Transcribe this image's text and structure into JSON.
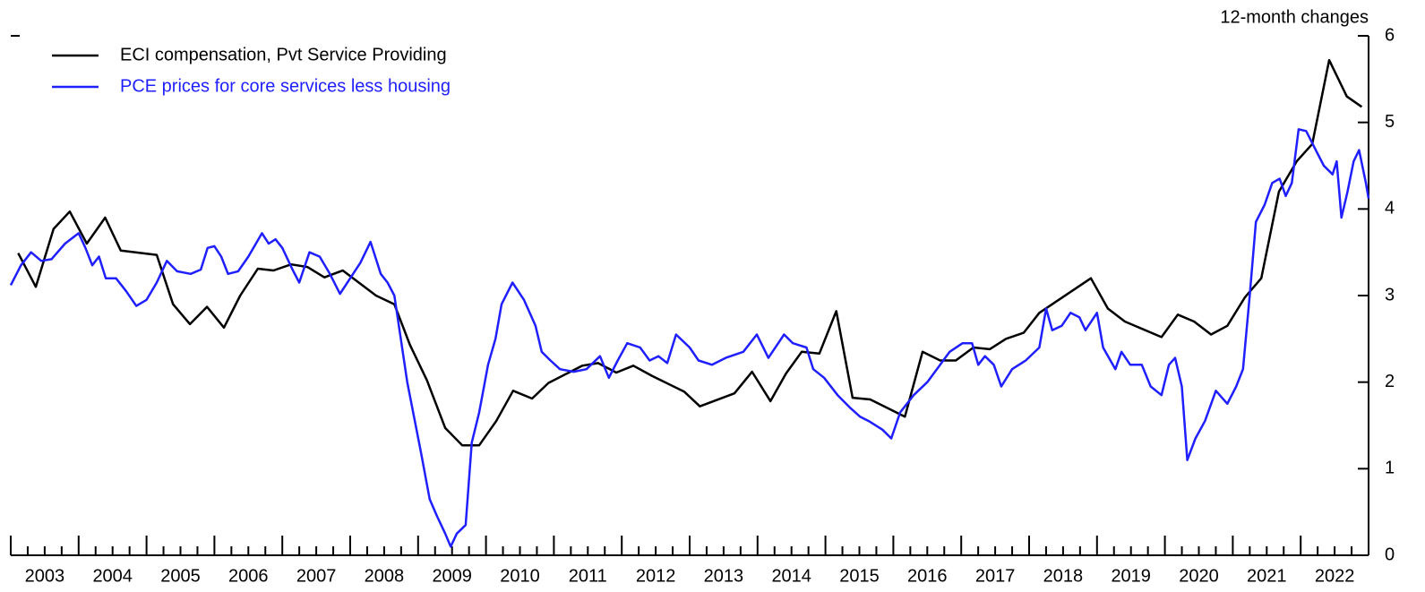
{
  "chart_data": {
    "type": "line",
    "annotation": "12-month changes",
    "legend": "upper left",
    "xlim": [
      2003,
      2023
    ],
    "xticks": [
      {
        "value": 2003.5,
        "label": "2003"
      },
      {
        "value": 2004.5,
        "label": "2004"
      },
      {
        "value": 2005.5,
        "label": "2005"
      },
      {
        "value": 2006.5,
        "label": "2006"
      },
      {
        "value": 2007.5,
        "label": "2007"
      },
      {
        "value": 2008.5,
        "label": "2008"
      },
      {
        "value": 2009.5,
        "label": "2009"
      },
      {
        "value": 2010.5,
        "label": "2010"
      },
      {
        "value": 2011.5,
        "label": "2011"
      },
      {
        "value": 2012.5,
        "label": "2012"
      },
      {
        "value": 2013.5,
        "label": "2013"
      },
      {
        "value": 2014.5,
        "label": "2014"
      },
      {
        "value": 2015.5,
        "label": "2015"
      },
      {
        "value": 2016.5,
        "label": "2016"
      },
      {
        "value": 2017.5,
        "label": "2017"
      },
      {
        "value": 2018.5,
        "label": "2018"
      },
      {
        "value": 2019.5,
        "label": "2019"
      },
      {
        "value": 2020.5,
        "label": "2020"
      },
      {
        "value": 2021.5,
        "label": "2021"
      },
      {
        "value": 2022.5,
        "label": "2022"
      }
    ],
    "ylim": [
      0,
      6
    ],
    "yticks": [
      0,
      1,
      2,
      3,
      4,
      5,
      6
    ],
    "series": [
      {
        "name": "ECI compensation, Pvt Service Providing",
        "color": "#000000",
        "x": [
          2003.11,
          2003.37,
          2003.63,
          2003.87,
          2004.12,
          2004.39,
          2004.62,
          2005.15,
          2005.39,
          2005.64,
          2005.89,
          2006.14,
          2006.38,
          2006.64,
          2006.87,
          2007.13,
          2007.37,
          2007.62,
          2007.89,
          2008.38,
          2008.65,
          2008.88,
          2009.13,
          2009.4,
          2009.65,
          2009.9,
          2010.15,
          2010.4,
          2010.68,
          2010.92,
          2011.42,
          2011.65,
          2011.92,
          2012.17,
          2012.45,
          2012.92,
          2013.15,
          2013.66,
          2013.92,
          2014.19,
          2014.42,
          2014.65,
          2014.91,
          2015.16,
          2015.4,
          2015.66,
          2016.17,
          2016.43,
          2016.69,
          2016.92,
          2017.18,
          2017.42,
          2017.66,
          2017.92,
          2018.15,
          2018.91,
          2019.16,
          2019.41,
          2019.95,
          2020.19,
          2020.43,
          2020.68,
          2020.92,
          2021.18,
          2021.42,
          2021.68,
          2021.94,
          2022.17,
          2022.42,
          2022.68,
          2022.9
        ],
        "values": [
          3.49,
          3.1,
          3.77,
          3.97,
          3.6,
          3.9,
          3.52,
          3.47,
          2.9,
          2.67,
          2.87,
          2.63,
          3.0,
          3.31,
          3.29,
          3.36,
          3.33,
          3.21,
          3.29,
          3.0,
          2.9,
          2.43,
          2.02,
          1.47,
          1.27,
          1.27,
          1.55,
          1.9,
          1.81,
          1.99,
          2.19,
          2.22,
          2.11,
          2.19,
          2.07,
          1.89,
          1.72,
          1.87,
          2.12,
          1.78,
          2.1,
          2.35,
          2.33,
          2.82,
          1.82,
          1.8,
          1.6,
          2.35,
          2.25,
          2.25,
          2.4,
          2.38,
          2.5,
          2.57,
          2.8,
          3.2,
          2.85,
          2.7,
          2.52,
          2.78,
          2.7,
          2.55,
          2.65,
          2.98,
          3.2,
          4.2,
          4.55,
          4.75,
          5.72,
          5.3,
          5.18
        ]
      },
      {
        "name": "PCE prices for core services less housing",
        "color": "#1f1fff",
        "x": [
          2003.0,
          2003.15,
          2003.3,
          2003.45,
          2003.6,
          2003.8,
          2004.0,
          2004.1,
          2004.2,
          2004.3,
          2004.4,
          2004.55,
          2004.7,
          2004.85,
          2005.0,
          2005.15,
          2005.3,
          2005.45,
          2005.65,
          2005.8,
          2005.9,
          2006.0,
          2006.1,
          2006.2,
          2006.35,
          2006.5,
          2006.7,
          2006.8,
          2006.9,
          2007.0,
          2007.15,
          2007.25,
          2007.4,
          2007.55,
          2007.7,
          2007.85,
          2008.0,
          2008.15,
          2008.3,
          2008.45,
          2008.55,
          2008.65,
          2008.84,
          2009.04,
          2009.17,
          2009.28,
          2009.4,
          2009.48,
          2009.57,
          2009.7,
          2009.79,
          2009.9,
          2010.03,
          2010.14,
          2010.23,
          2010.39,
          2010.56,
          2010.73,
          2010.82,
          2010.95,
          2011.09,
          2011.29,
          2011.48,
          2011.68,
          2011.81,
          2011.94,
          2012.08,
          2012.27,
          2012.41,
          2012.54,
          2012.67,
          2012.8,
          2013.0,
          2013.13,
          2013.33,
          2013.53,
          2013.79,
          2013.99,
          2014.16,
          2014.39,
          2014.52,
          2014.72,
          2014.82,
          2014.98,
          2015.18,
          2015.37,
          2015.51,
          2015.64,
          2015.84,
          2015.97,
          2016.1,
          2016.3,
          2016.5,
          2016.69,
          2016.83,
          2017.02,
          2017.16,
          2017.25,
          2017.35,
          2017.48,
          2017.59,
          2017.75,
          2017.95,
          2018.15,
          2018.25,
          2018.34,
          2018.48,
          2018.61,
          2018.74,
          2018.83,
          2019.0,
          2019.09,
          2019.27,
          2019.36,
          2019.49,
          2019.66,
          2019.79,
          2019.95,
          2020.06,
          2020.15,
          2020.25,
          2020.33,
          2020.45,
          2020.59,
          2020.75,
          2020.92,
          2021.05,
          2021.15,
          2021.25,
          2021.34,
          2021.47,
          2021.58,
          2021.69,
          2021.78,
          2021.87,
          2021.97,
          2022.08,
          2022.21,
          2022.34,
          2022.47,
          2022.53,
          2022.6,
          2022.69,
          2022.78,
          2022.86,
          2022.96,
          2023.0
        ],
        "values": [
          3.12,
          3.35,
          3.5,
          3.4,
          3.42,
          3.6,
          3.72,
          3.55,
          3.35,
          3.45,
          3.2,
          3.2,
          3.05,
          2.88,
          2.95,
          3.15,
          3.4,
          3.28,
          3.25,
          3.3,
          3.55,
          3.57,
          3.45,
          3.25,
          3.28,
          3.45,
          3.72,
          3.6,
          3.65,
          3.55,
          3.3,
          3.15,
          3.5,
          3.45,
          3.25,
          3.02,
          3.2,
          3.38,
          3.62,
          3.25,
          3.15,
          3.0,
          2.0,
          1.2,
          0.65,
          0.45,
          0.25,
          0.1,
          0.25,
          0.35,
          1.3,
          1.65,
          2.2,
          2.5,
          2.9,
          3.15,
          2.95,
          2.65,
          2.35,
          2.25,
          2.15,
          2.12,
          2.15,
          2.3,
          2.05,
          2.25,
          2.45,
          2.4,
          2.25,
          2.3,
          2.22,
          2.55,
          2.4,
          2.25,
          2.2,
          2.28,
          2.35,
          2.55,
          2.28,
          2.55,
          2.45,
          2.4,
          2.15,
          2.05,
          1.85,
          1.7,
          1.6,
          1.55,
          1.45,
          1.35,
          1.65,
          1.85,
          2.0,
          2.2,
          2.35,
          2.45,
          2.45,
          2.2,
          2.3,
          2.2,
          1.95,
          2.15,
          2.25,
          2.4,
          2.85,
          2.6,
          2.65,
          2.8,
          2.75,
          2.6,
          2.8,
          2.4,
          2.15,
          2.35,
          2.2,
          2.2,
          1.95,
          1.85,
          2.2,
          2.28,
          1.95,
          1.1,
          1.35,
          1.55,
          1.9,
          1.75,
          1.95,
          2.15,
          3.0,
          3.85,
          4.05,
          4.3,
          4.35,
          4.15,
          4.3,
          4.92,
          4.9,
          4.7,
          4.5,
          4.4,
          4.55,
          3.9,
          4.2,
          4.55,
          4.68,
          4.3,
          4.12
        ]
      }
    ]
  }
}
